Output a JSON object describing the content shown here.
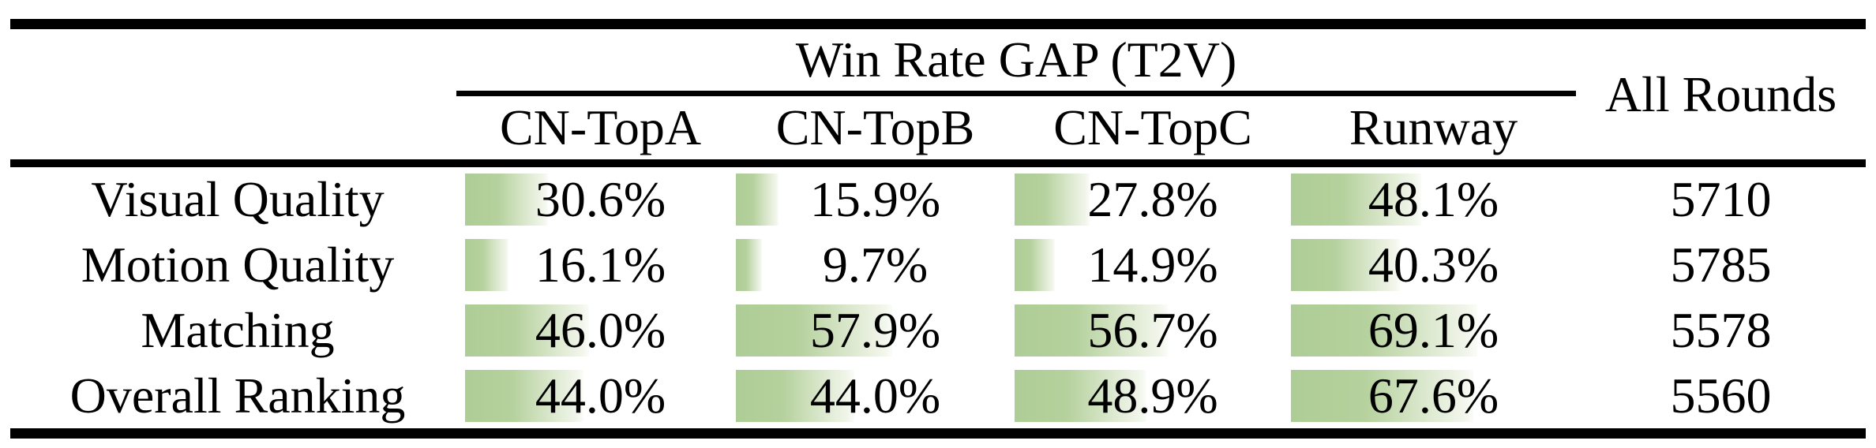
{
  "table": {
    "group_header": "Win Rate GAP (T2V)",
    "all_rounds_header": "All Rounds",
    "columns": [
      "CN-TopA",
      "CN-TopB",
      "CN-TopC",
      "Runway"
    ],
    "rows": [
      {
        "label": "Visual Quality",
        "cells": [
          {
            "text": "30.6%",
            "pct": 30.6
          },
          {
            "text": "15.9%",
            "pct": 15.9
          },
          {
            "text": "27.8%",
            "pct": 27.8
          },
          {
            "text": "48.1%",
            "pct": 48.1
          }
        ],
        "all_rounds": "5710"
      },
      {
        "label": "Motion Quality",
        "cells": [
          {
            "text": "16.1%",
            "pct": 16.1
          },
          {
            "text": "9.7%",
            "pct": 9.7
          },
          {
            "text": "14.9%",
            "pct": 14.9
          },
          {
            "text": "40.3%",
            "pct": 40.3
          }
        ],
        "all_rounds": "5785"
      },
      {
        "label": "Matching",
        "cells": [
          {
            "text": "46.0%",
            "pct": 46.0
          },
          {
            "text": "57.9%",
            "pct": 57.9
          },
          {
            "text": "56.7%",
            "pct": 56.7
          },
          {
            "text": "69.1%",
            "pct": 69.1
          }
        ],
        "all_rounds": "5578"
      },
      {
        "label": "Overall Ranking",
        "cells": [
          {
            "text": "44.0%",
            "pct": 44.0
          },
          {
            "text": "44.0%",
            "pct": 44.0
          },
          {
            "text": "48.9%",
            "pct": 48.9
          },
          {
            "text": "67.6%",
            "pct": 67.6
          }
        ],
        "all_rounds": "5560"
      }
    ],
    "bar_color_start": "#aecd96",
    "bar_color_end": "#fbfcf9"
  },
  "chart_data": {
    "type": "table",
    "title": "Win Rate GAP (T2V)",
    "categories": [
      "CN-TopA",
      "CN-TopB",
      "CN-TopC",
      "Runway"
    ],
    "series": [
      {
        "name": "Visual Quality",
        "values": [
          30.6,
          15.9,
          27.8,
          48.1
        ],
        "all_rounds": 5710
      },
      {
        "name": "Motion Quality",
        "values": [
          16.1,
          9.7,
          14.9,
          40.3
        ],
        "all_rounds": 5785
      },
      {
        "name": "Matching",
        "values": [
          46.0,
          57.9,
          56.7,
          69.1
        ],
        "all_rounds": 5578
      },
      {
        "name": "Overall Ranking",
        "values": [
          44.0,
          44.0,
          48.9,
          67.6
        ],
        "all_rounds": 5560
      }
    ],
    "value_unit": "%",
    "extra_column": "All Rounds"
  }
}
